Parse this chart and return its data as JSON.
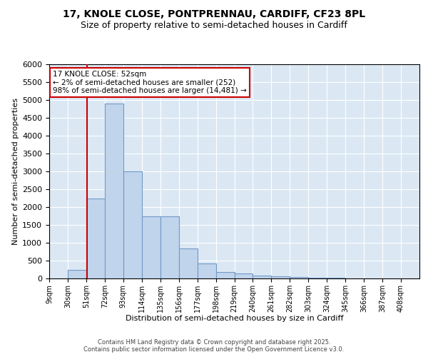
{
  "title_line1": "17, KNOLE CLOSE, PONTPRENNAU, CARDIFF, CF23 8PL",
  "title_line2": "Size of property relative to semi-detached houses in Cardiff",
  "xlabel": "Distribution of semi-detached houses by size in Cardiff",
  "ylabel": "Number of semi-detached properties",
  "footer_line1": "Contains HM Land Registry data © Crown copyright and database right 2025.",
  "footer_line2": "Contains public sector information licensed under the Open Government Licence v3.0.",
  "annotation_title": "17 KNOLE CLOSE: 52sqm",
  "annotation_line1": "← 2% of semi-detached houses are smaller (252)",
  "annotation_line2": "98% of semi-detached houses are larger (14,481) →",
  "property_size": 52,
  "bin_edges": [
    9,
    30,
    51,
    72,
    93,
    114,
    135,
    156,
    177,
    198,
    219,
    240,
    261,
    282,
    303,
    324,
    345,
    366,
    387,
    408,
    429
  ],
  "bar_heights": [
    5,
    240,
    2250,
    4900,
    3000,
    1750,
    1750,
    850,
    420,
    175,
    150,
    90,
    55,
    40,
    20,
    15,
    7,
    3,
    1,
    1
  ],
  "bar_color": "#c0d4ec",
  "bar_edge_color": "#7399c6",
  "vline_color": "#cc0000",
  "plot_bg_color": "#dbe8f4",
  "ylim": [
    0,
    6000
  ],
  "yticks": [
    0,
    500,
    1000,
    1500,
    2000,
    2500,
    3000,
    3500,
    4000,
    4500,
    5000,
    5500,
    6000
  ],
  "ann_box_color": "#cc0000",
  "title_fontsize": 10,
  "subtitle_fontsize": 9,
  "ylabel_fontsize": 8,
  "xlabel_fontsize": 8,
  "footer_fontsize": 6
}
